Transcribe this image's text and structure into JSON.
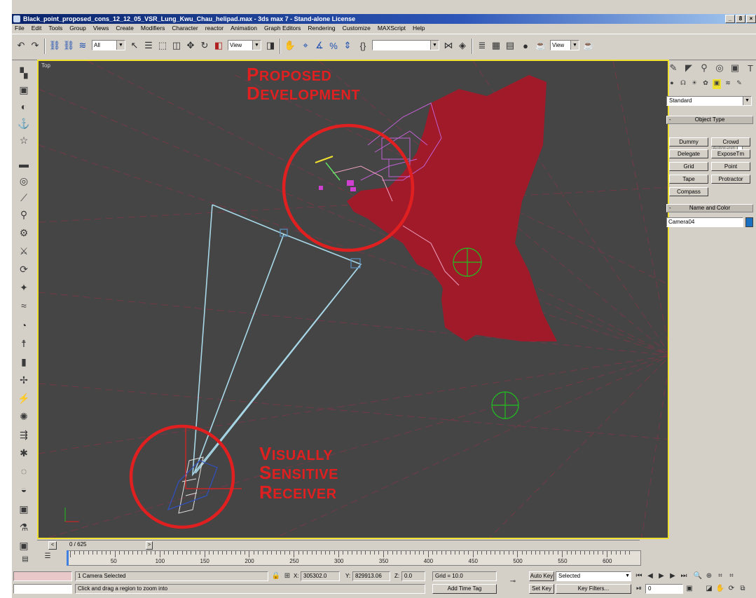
{
  "window": {
    "title": "Black_point_proposed_cons_12_12_05_VSR_Lung_Kwu_Chau_helipad.max - 3ds max 7 - Stand-alone License",
    "controls": [
      "_",
      "8",
      "×"
    ]
  },
  "menu": [
    "File",
    "Edit",
    "Tools",
    "Group",
    "Views",
    "Create",
    "Modifiers",
    "Character",
    "reactor",
    "Animation",
    "Graph Editors",
    "Rendering",
    "Customize",
    "MAXScript",
    "Help"
  ],
  "toolbar": {
    "selection_filter": "All",
    "reference_coord_1": "View",
    "reference_coord_2": "View",
    "named_selection": ""
  },
  "viewport": {
    "label": "Top"
  },
  "annotations": {
    "proposed_line1_first": "P",
    "proposed_line1_rest": "ROPOSED",
    "proposed_line2_first": "D",
    "proposed_line2_rest": "EVELOPMENT",
    "vsr_line1_first": "V",
    "vsr_line1_rest": "ISUALLY",
    "vsr_line2_first": "S",
    "vsr_line2_rest": "ENSITIVE",
    "vsr_line3_first": "R",
    "vsr_line3_rest": "ECEIVER"
  },
  "command_panel": {
    "category_select": "Standard",
    "object_type_title": "Object Type",
    "autogrid_label": "AutoGrid",
    "buttons": [
      "Dummy",
      "Crowd",
      "Delegate",
      "ExposeTm",
      "Grid",
      "Point",
      "Tape",
      "Protractor",
      "Compass"
    ],
    "name_color_title": "Name and Color",
    "object_name": "Camera04",
    "object_color": "#1a70c0"
  },
  "time_slider": {
    "frame": "0 / 625",
    "left_arrow": "<",
    "right_arrow": ">"
  },
  "track_ruler": {
    "labels": [
      "50",
      "100",
      "150",
      "200",
      "250",
      "300",
      "350",
      "400",
      "450",
      "500",
      "550",
      "600"
    ]
  },
  "status": {
    "selection_text": "1 Camera Selected",
    "prompt_text": "Click and drag a region to zoom into",
    "x_label": "X:",
    "x_value": "305302.0",
    "y_label": "Y:",
    "y_value": "829913.06",
    "z_label": "Z:",
    "z_value": "0.0",
    "grid_text": "Grid = 10.0",
    "add_time_tag": "Add Time Tag",
    "auto_key": "Auto Key",
    "auto_key_select": "Selected",
    "set_key": "Set Key",
    "key_filters": "Key Filters...",
    "current_frame": "0"
  },
  "colors": {
    "viewport_bg": "#454545",
    "active_border": "#f0e030",
    "terrain": "#a01a2a",
    "annotation": "#e02020",
    "camera_cone": "#a8d8e8"
  }
}
